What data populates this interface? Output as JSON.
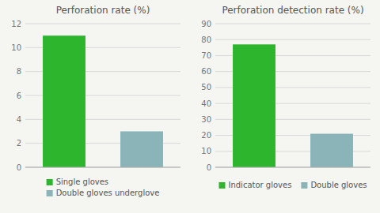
{
  "chart_data": [
    {
      "type": "bar",
      "title": "Perforation rate (%)",
      "categories": [
        "Single gloves",
        "Double gloves underglove"
      ],
      "values": [
        11.0,
        3.0
      ],
      "colors": [
        "#2db52d",
        "#8ab4b8"
      ],
      "ylim": [
        0,
        12
      ],
      "yticks": [
        0,
        2,
        4,
        6,
        8,
        10,
        12
      ],
      "grid": true,
      "legend": "bottom",
      "tick_labels": "y"
    },
    {
      "type": "bar",
      "title": "Perforation detection rate (%)",
      "categories": [
        "Indicator gloves",
        "Double gloves"
      ],
      "values": [
        77.0,
        21.0
      ],
      "colors": [
        "#2db52d",
        "#8ab4b8"
      ],
      "ylim": [
        0,
        90
      ],
      "yticks": [
        0,
        10,
        20,
        30,
        40,
        50,
        60,
        70,
        80,
        90
      ],
      "grid": true,
      "legend": "bottom",
      "tick_labels": "y"
    }
  ]
}
